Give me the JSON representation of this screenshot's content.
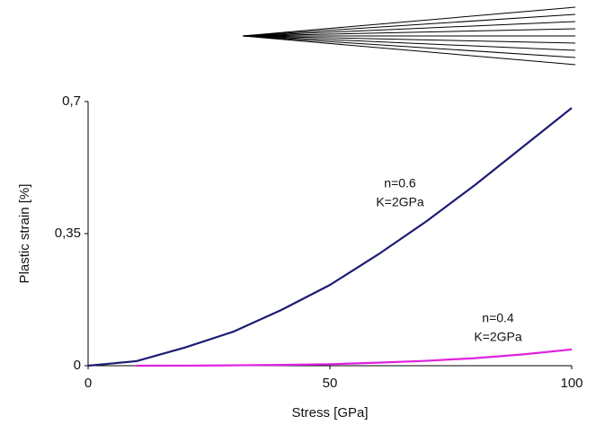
{
  "chart_data": {
    "type": "line",
    "x_label": "Stress [GPa]",
    "y_label": "Plastic strain [%]",
    "x": [
      0,
      10,
      20,
      30,
      40,
      50,
      60,
      70,
      80,
      90,
      100
    ],
    "series": [
      {
        "color": "#1c1c72",
        "values": [
          0,
          0.012,
          0.048,
          0.09,
          0.148,
          0.214,
          0.295,
          0.383,
          0.479,
          0.581,
          0.683
        ]
      },
      {
        "color": "#e021e0",
        "values": [
          null,
          0,
          0.0002,
          0.001,
          0.002,
          0.004,
          0.008,
          0.013,
          0.02,
          0.03,
          0.043
        ]
      }
    ],
    "annotations": [
      [
        "n=0.6",
        "K=2GPa"
      ],
      [
        "n=0.4",
        "K=2GPa"
      ]
    ],
    "xlim": [
      0,
      100
    ],
    "xticks": [
      0,
      50,
      100
    ],
    "ylim": [
      0,
      0.7
    ],
    "yticks": [
      0,
      {
        "value": 0.35,
        "label": "0,35"
      },
      {
        "value": 0.7,
        "label": "0,7"
      }
    ]
  }
}
